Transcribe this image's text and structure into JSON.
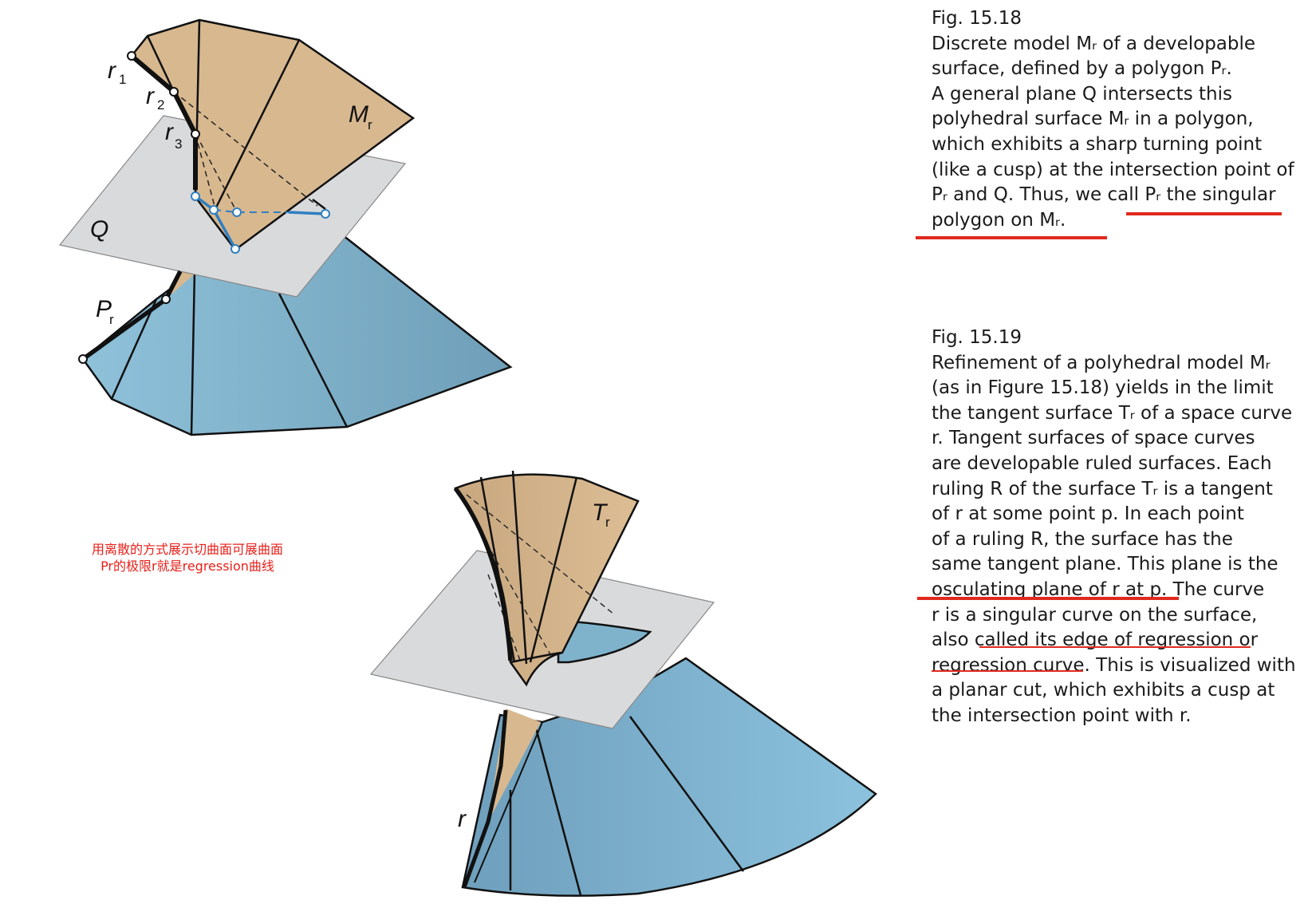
{
  "fig1": {
    "labels": {
      "r1": "r",
      "r1_sub": "1",
      "r2": "r",
      "r2_sub": "2",
      "r3": "r",
      "r3_sub": "3",
      "M": "M",
      "M_sub": "r",
      "Q": "Q",
      "P": "P",
      "P_sub": "r"
    }
  },
  "fig2": {
    "labels": {
      "T": "T",
      "T_sub": "r",
      "r": "r"
    }
  },
  "annotation": {
    "line1": "用离散的方式展示切曲面可展曲面",
    "line2": "Pr的极限r就是regression曲线",
    "color": "#e8201a"
  },
  "caption1": {
    "lines": [
      "Fig. 15.18",
      "Discrete model Mᵣ of a developable",
      "surface, defined by a polygon Pᵣ.",
      "A general plane Q intersects this",
      "polyhedral surface Mᵣ in a polygon,",
      "which exhibits a sharp turning point",
      "(like a cusp) at the intersection point of",
      "Pᵣ and Q. Thus, we call Pᵣ the singular",
      "polygon on Mᵣ."
    ]
  },
  "caption2": {
    "lines": [
      "Fig. 15.19",
      "Refinement of a polyhedral model Mᵣ",
      "(as in Figure 15.18) yields in the limit",
      "the tangent surface Tᵣ of a space curve",
      "r. Tangent surfaces of space curves",
      "are developable ruled surfaces. Each",
      "ruling R of the surface Tᵣ is a tangent",
      "of r at some point p. In each point",
      "of a ruling R, the surface has the",
      "same tangent plane. This plane is the",
      "osculating plane of r at p. The curve",
      "r is a singular curve on the surface,",
      "also called its edge of regression or",
      "regression curve. This is visualized with",
      "a planar cut, which exhibits a cusp at",
      "the intersection point with r."
    ]
  },
  "colors": {
    "tan": "#d8b88f",
    "blue": "#7fb3cc",
    "plane": "#d9dadc",
    "polygon": "#2f7fc1",
    "underline": "#e02a1e"
  }
}
